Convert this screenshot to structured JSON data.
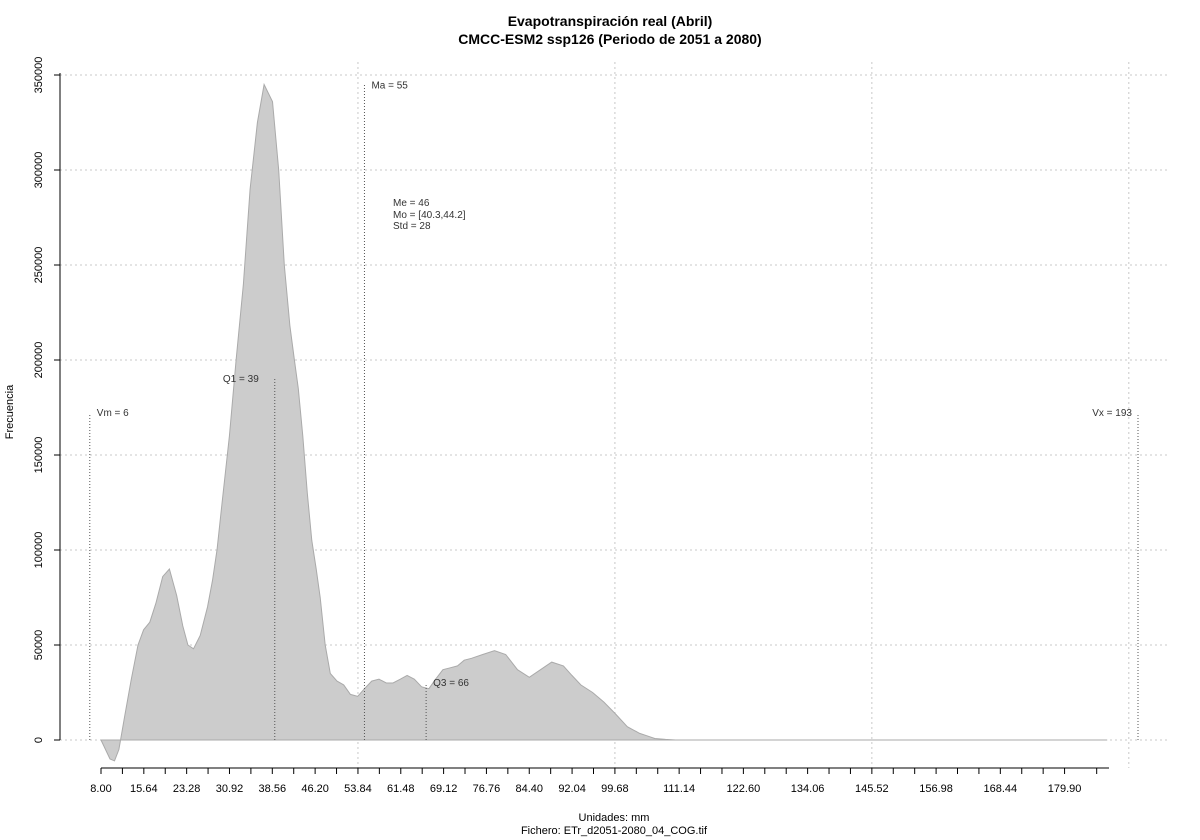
{
  "chart_data": {
    "type": "area",
    "title": "Evapotranspiración real (Abril)",
    "subtitle": "CMCC-ESM2 ssp126 (Periodo de 2051 a 2080)",
    "xlabel": "Unidades: mm",
    "ylabel": "Frecuencia",
    "footer": "Fichero: ETr_d2051-2080_04_COG.tif",
    "xlim": [
      8.0,
      190.0
    ],
    "ylim": [
      -10000,
      350000
    ],
    "x_ticks": [
      8.0,
      15.64,
      23.28,
      30.92,
      38.56,
      46.2,
      53.84,
      61.48,
      69.12,
      76.76,
      84.4,
      92.04,
      99.68,
      111.14,
      122.6,
      134.06,
      145.52,
      156.98,
      168.44,
      179.9
    ],
    "x_tick_labels": [
      "8.00",
      "15.64",
      "23.28",
      "30.92",
      "38.56",
      "46.20",
      "53.84",
      "61.48",
      "69.12",
      "76.76",
      "84.40",
      "92.04",
      "99.68",
      "111.14",
      "122.60",
      "134.06",
      "145.52",
      "156.98",
      "168.44",
      "179.90"
    ],
    "y_ticks": [
      0,
      50000,
      100000,
      150000,
      200000,
      250000,
      300000,
      350000
    ],
    "y_tick_labels": [
      "0",
      "50000",
      "100000",
      "150000",
      "200000",
      "250000",
      "300000",
      "350000"
    ],
    "x_grid": [
      53.84,
      99.68,
      145.52,
      191.36
    ],
    "grid": true,
    "fill_color": "#cccccc",
    "line_color": "#aaaaaa",
    "density": {
      "x": [
        8.0,
        8.8,
        9.6,
        10.4,
        11.2,
        12.2,
        13.4,
        14.6,
        15.6,
        16.7,
        17.8,
        19.0,
        20.2,
        21.5,
        22.6,
        23.5,
        24.5,
        25.7,
        27.0,
        27.9,
        28.7,
        29.6,
        30.9,
        32.1,
        33.4,
        34.6,
        35.9,
        37.1,
        38.6,
        39.7,
        40.7,
        41.7,
        42.5,
        43.2,
        44.0,
        44.8,
        45.6,
        46.4,
        47.1,
        48.0,
        48.9,
        50.1,
        51.3,
        52.5,
        53.8,
        55.0,
        56.3,
        57.6,
        58.9,
        60.1,
        61.4,
        62.6,
        63.9,
        65.2,
        66.5,
        67.7,
        69.0,
        70.3,
        71.6,
        72.8,
        74.1,
        76.1,
        78.2,
        80.2,
        82.3,
        84.4,
        86.4,
        88.4,
        90.5,
        92.0,
        93.6,
        95.7,
        97.7,
        99.7,
        101.9,
        104.1,
        105.6,
        106.8,
        108.7,
        110.5,
        111.7,
        112.8,
        114.0,
        115.5,
        117.0,
        118.9,
        120.9,
        122.7,
        124.6,
        126.5,
        128.3,
        130.2,
        132.1,
        134.0,
        136.0,
        138.0,
        141.9,
        145.5,
        155.6,
        168.6,
        181.6,
        187.5
      ],
      "y": [
        0,
        -5000,
        -10000,
        -11000,
        -5000,
        12000,
        32000,
        50000,
        58000,
        62000,
        72000,
        86000,
        90000,
        76000,
        60000,
        50000,
        48000,
        55000,
        70000,
        84000,
        100000,
        125000,
        160000,
        200000,
        240000,
        290000,
        325000,
        345000,
        336000,
        300000,
        250000,
        218000,
        200000,
        185000,
        160000,
        130000,
        105000,
        90000,
        75000,
        50000,
        35000,
        31000,
        29000,
        24000,
        23000,
        27000,
        31000,
        32000,
        30000,
        30000,
        32000,
        34000,
        32000,
        28000,
        27000,
        32000,
        37000,
        38000,
        39000,
        42000,
        43000,
        45000,
        47000,
        45000,
        37000,
        33000,
        37000,
        41000,
        39000,
        34000,
        29000,
        25000,
        20000,
        14000,
        7000,
        3500,
        2000,
        800,
        300,
        0,
        0,
        0,
        0,
        0,
        0,
        0,
        0,
        0,
        0,
        0,
        0,
        0,
        0,
        0,
        0,
        0,
        0,
        0,
        0,
        0,
        0,
        0
      ]
    },
    "markers": [
      {
        "name": "Vm",
        "label": "Vm = 6",
        "x": 6,
        "height": 172000
      },
      {
        "name": "Q1",
        "label": "Q1 = 39",
        "x": 39,
        "height": 190000
      },
      {
        "name": "Ma",
        "label": "Ma = 55",
        "x": 55,
        "height": 345000
      },
      {
        "name": "Q3",
        "label": "Q3 = 66",
        "x": 66,
        "height": 30000
      },
      {
        "name": "Vx",
        "label": "Vx = 193",
        "x": 193,
        "height": 172000
      }
    ],
    "stats": [
      "Me = 46",
      "Mo = [40.3,44.2]",
      "Std = 28"
    ]
  }
}
